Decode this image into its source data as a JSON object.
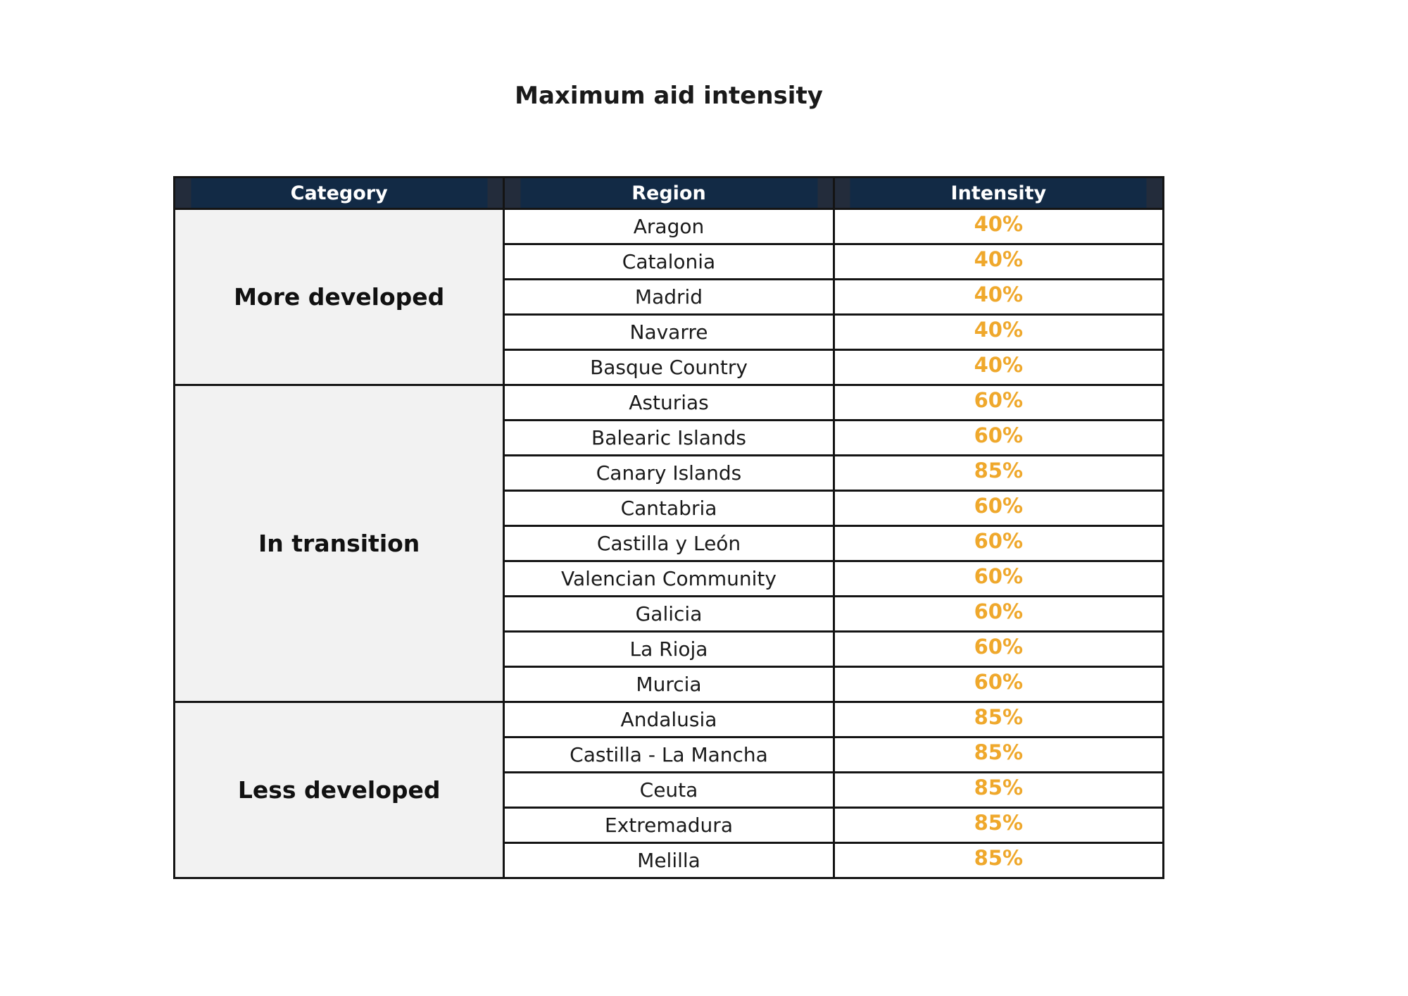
{
  "title": "Maximum aid intensity",
  "colors": {
    "header_bg": "#122A45",
    "header_edge": "#232C3B",
    "border": "#141414",
    "category_bg": "#F2F2F2",
    "intensity_text": "#EFA82C",
    "header_text": "#FFFFFF",
    "body_text": "#1A1A1A"
  },
  "table": {
    "headers": [
      "Category",
      "Region",
      "Intensity"
    ],
    "groups": [
      {
        "category": "More developed",
        "rows": [
          {
            "region": "Aragon",
            "intensity": "40%"
          },
          {
            "region": "Catalonia",
            "intensity": "40%"
          },
          {
            "region": "Madrid",
            "intensity": "40%"
          },
          {
            "region": "Navarre",
            "intensity": "40%"
          },
          {
            "region": "Basque Country",
            "intensity": "40%"
          }
        ]
      },
      {
        "category": "In transition",
        "rows": [
          {
            "region": "Asturias",
            "intensity": "60%"
          },
          {
            "region": "Balearic Islands",
            "intensity": "60%"
          },
          {
            "region": "Canary Islands",
            "intensity": "85%"
          },
          {
            "region": "Cantabria",
            "intensity": "60%"
          },
          {
            "region": "Castilla y León",
            "intensity": "60%"
          },
          {
            "region": "Valencian Community",
            "intensity": "60%"
          },
          {
            "region": "Galicia",
            "intensity": "60%"
          },
          {
            "region": "La Rioja",
            "intensity": "60%"
          },
          {
            "region": "Murcia",
            "intensity": "60%"
          }
        ]
      },
      {
        "category": "Less developed",
        "rows": [
          {
            "region": "Andalusia",
            "intensity": "85%"
          },
          {
            "region": "Castilla - La Mancha",
            "intensity": "85%"
          },
          {
            "region": "Ceuta",
            "intensity": "85%"
          },
          {
            "region": "Extremadura",
            "intensity": "85%"
          },
          {
            "region": "Melilla",
            "intensity": "85%"
          }
        ]
      }
    ]
  },
  "chart_data": {
    "type": "table",
    "title": "Maximum aid intensity",
    "columns": [
      "Category",
      "Region",
      "Intensity"
    ],
    "rows": [
      [
        "More developed",
        "Aragon",
        "40%"
      ],
      [
        "More developed",
        "Catalonia",
        "40%"
      ],
      [
        "More developed",
        "Madrid",
        "40%"
      ],
      [
        "More developed",
        "Navarre",
        "40%"
      ],
      [
        "More developed",
        "Basque Country",
        "40%"
      ],
      [
        "In transition",
        "Asturias",
        "60%"
      ],
      [
        "In transition",
        "Balearic Islands",
        "60%"
      ],
      [
        "In transition",
        "Canary Islands",
        "85%"
      ],
      [
        "In transition",
        "Cantabria",
        "60%"
      ],
      [
        "In transition",
        "Castilla y León",
        "60%"
      ],
      [
        "In transition",
        "Valencian Community",
        "60%"
      ],
      [
        "In transition",
        "Galicia",
        "60%"
      ],
      [
        "In transition",
        "La Rioja",
        "60%"
      ],
      [
        "In transition",
        "Murcia",
        "60%"
      ],
      [
        "Less developed",
        "Andalusia",
        "85%"
      ],
      [
        "Less developed",
        "Castilla - La Mancha",
        "85%"
      ],
      [
        "Less developed",
        "Ceuta",
        "85%"
      ],
      [
        "Less developed",
        "Extremadura",
        "85%"
      ],
      [
        "Less developed",
        "Melilla",
        "85%"
      ]
    ]
  }
}
